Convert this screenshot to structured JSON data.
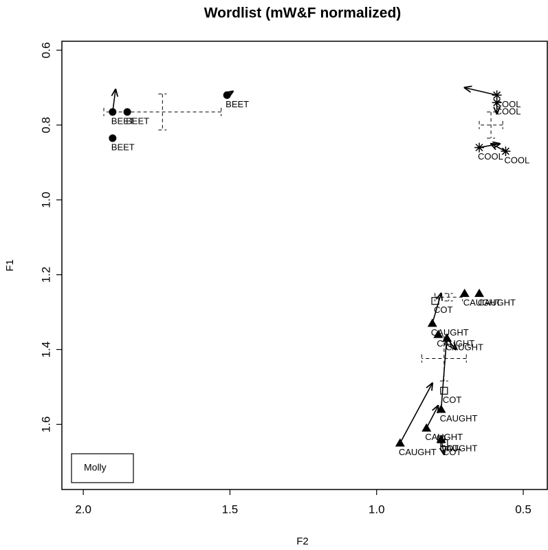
{
  "chart_data": {
    "type": "scatter",
    "title": "Wordlist (mW&F normalized)",
    "x_label": "F2",
    "y_label": "F1",
    "legend": "Molly",
    "xlim": [
      2.073,
      0.418
    ],
    "ylim": [
      1.774,
      0.576
    ],
    "xticks": [
      {
        "value": 2,
        "label": "2.0"
      },
      1.5,
      {
        "value": 1,
        "label": "1.0"
      },
      0.5
    ],
    "yticks": [
      0.6,
      0.8,
      {
        "value": 1,
        "label": "1.0"
      },
      1.2,
      1.4,
      1.6
    ],
    "series": [
      {
        "name": "BEET",
        "marker": "circle",
        "color": "#000000",
        "x": [
          1.51,
          1.9,
          1.85,
          1.9
        ],
        "y": [
          0.72,
          0.765,
          0.765,
          0.835
        ],
        "arrow_x": [
          1.49,
          1.89,
          null,
          null
        ],
        "arrow_y": [
          0.71,
          0.705,
          null,
          null
        ],
        "cross": {
          "x": 1.73,
          "y": 0.765,
          "xerr": 0.2,
          "yerr": 0.048
        }
      },
      {
        "name": "COOL",
        "marker": "asterisk",
        "color": "#000000",
        "x": [
          0.59,
          0.59,
          0.65,
          0.56
        ],
        "y": [
          0.72,
          0.74,
          0.86,
          0.87
        ],
        "arrow_x": [
          0.7,
          0.59,
          0.58,
          0.61
        ],
        "arrow_y": [
          0.7,
          0.77,
          0.85,
          0.85
        ],
        "cross": {
          "x": 0.61,
          "y": 0.8,
          "xerr": 0.04,
          "yerr": 0.035
        }
      },
      {
        "name": "COT",
        "marker": "square",
        "color": "#000000",
        "x": [
          0.8,
          0.77,
          0.78,
          0.77
        ],
        "y": [
          1.27,
          1.51,
          1.64,
          1.65
        ],
        "arrow_x": [
          null,
          null,
          null,
          null
        ],
        "arrow_y": [
          null,
          null,
          null,
          null
        ],
        "cross": {
          "x": 0.754,
          "y": 1.26,
          "xerr": 0.047,
          "yerr": 0.01
        }
      },
      {
        "name": "CAUGHT",
        "marker": "triangle",
        "color": "#000000",
        "x": [
          0.7,
          0.65,
          0.81,
          0.79,
          0.76,
          0.92,
          0.83,
          0.78,
          0.78
        ],
        "y": [
          1.25,
          1.25,
          1.33,
          1.36,
          1.37,
          1.65,
          1.61,
          1.56,
          1.64
        ],
        "arrow_x": [
          null,
          null,
          0.78,
          null,
          0.73,
          0.81,
          0.79,
          0.76,
          0.77
        ],
        "arrow_y": [
          null,
          null,
          1.25,
          null,
          1.4,
          1.49,
          1.55,
          1.36,
          1.68
        ],
        "cross": {
          "x": 0.77,
          "y": 1.424,
          "xerr": 0.076,
          "yerr": 0.06
        }
      }
    ]
  }
}
